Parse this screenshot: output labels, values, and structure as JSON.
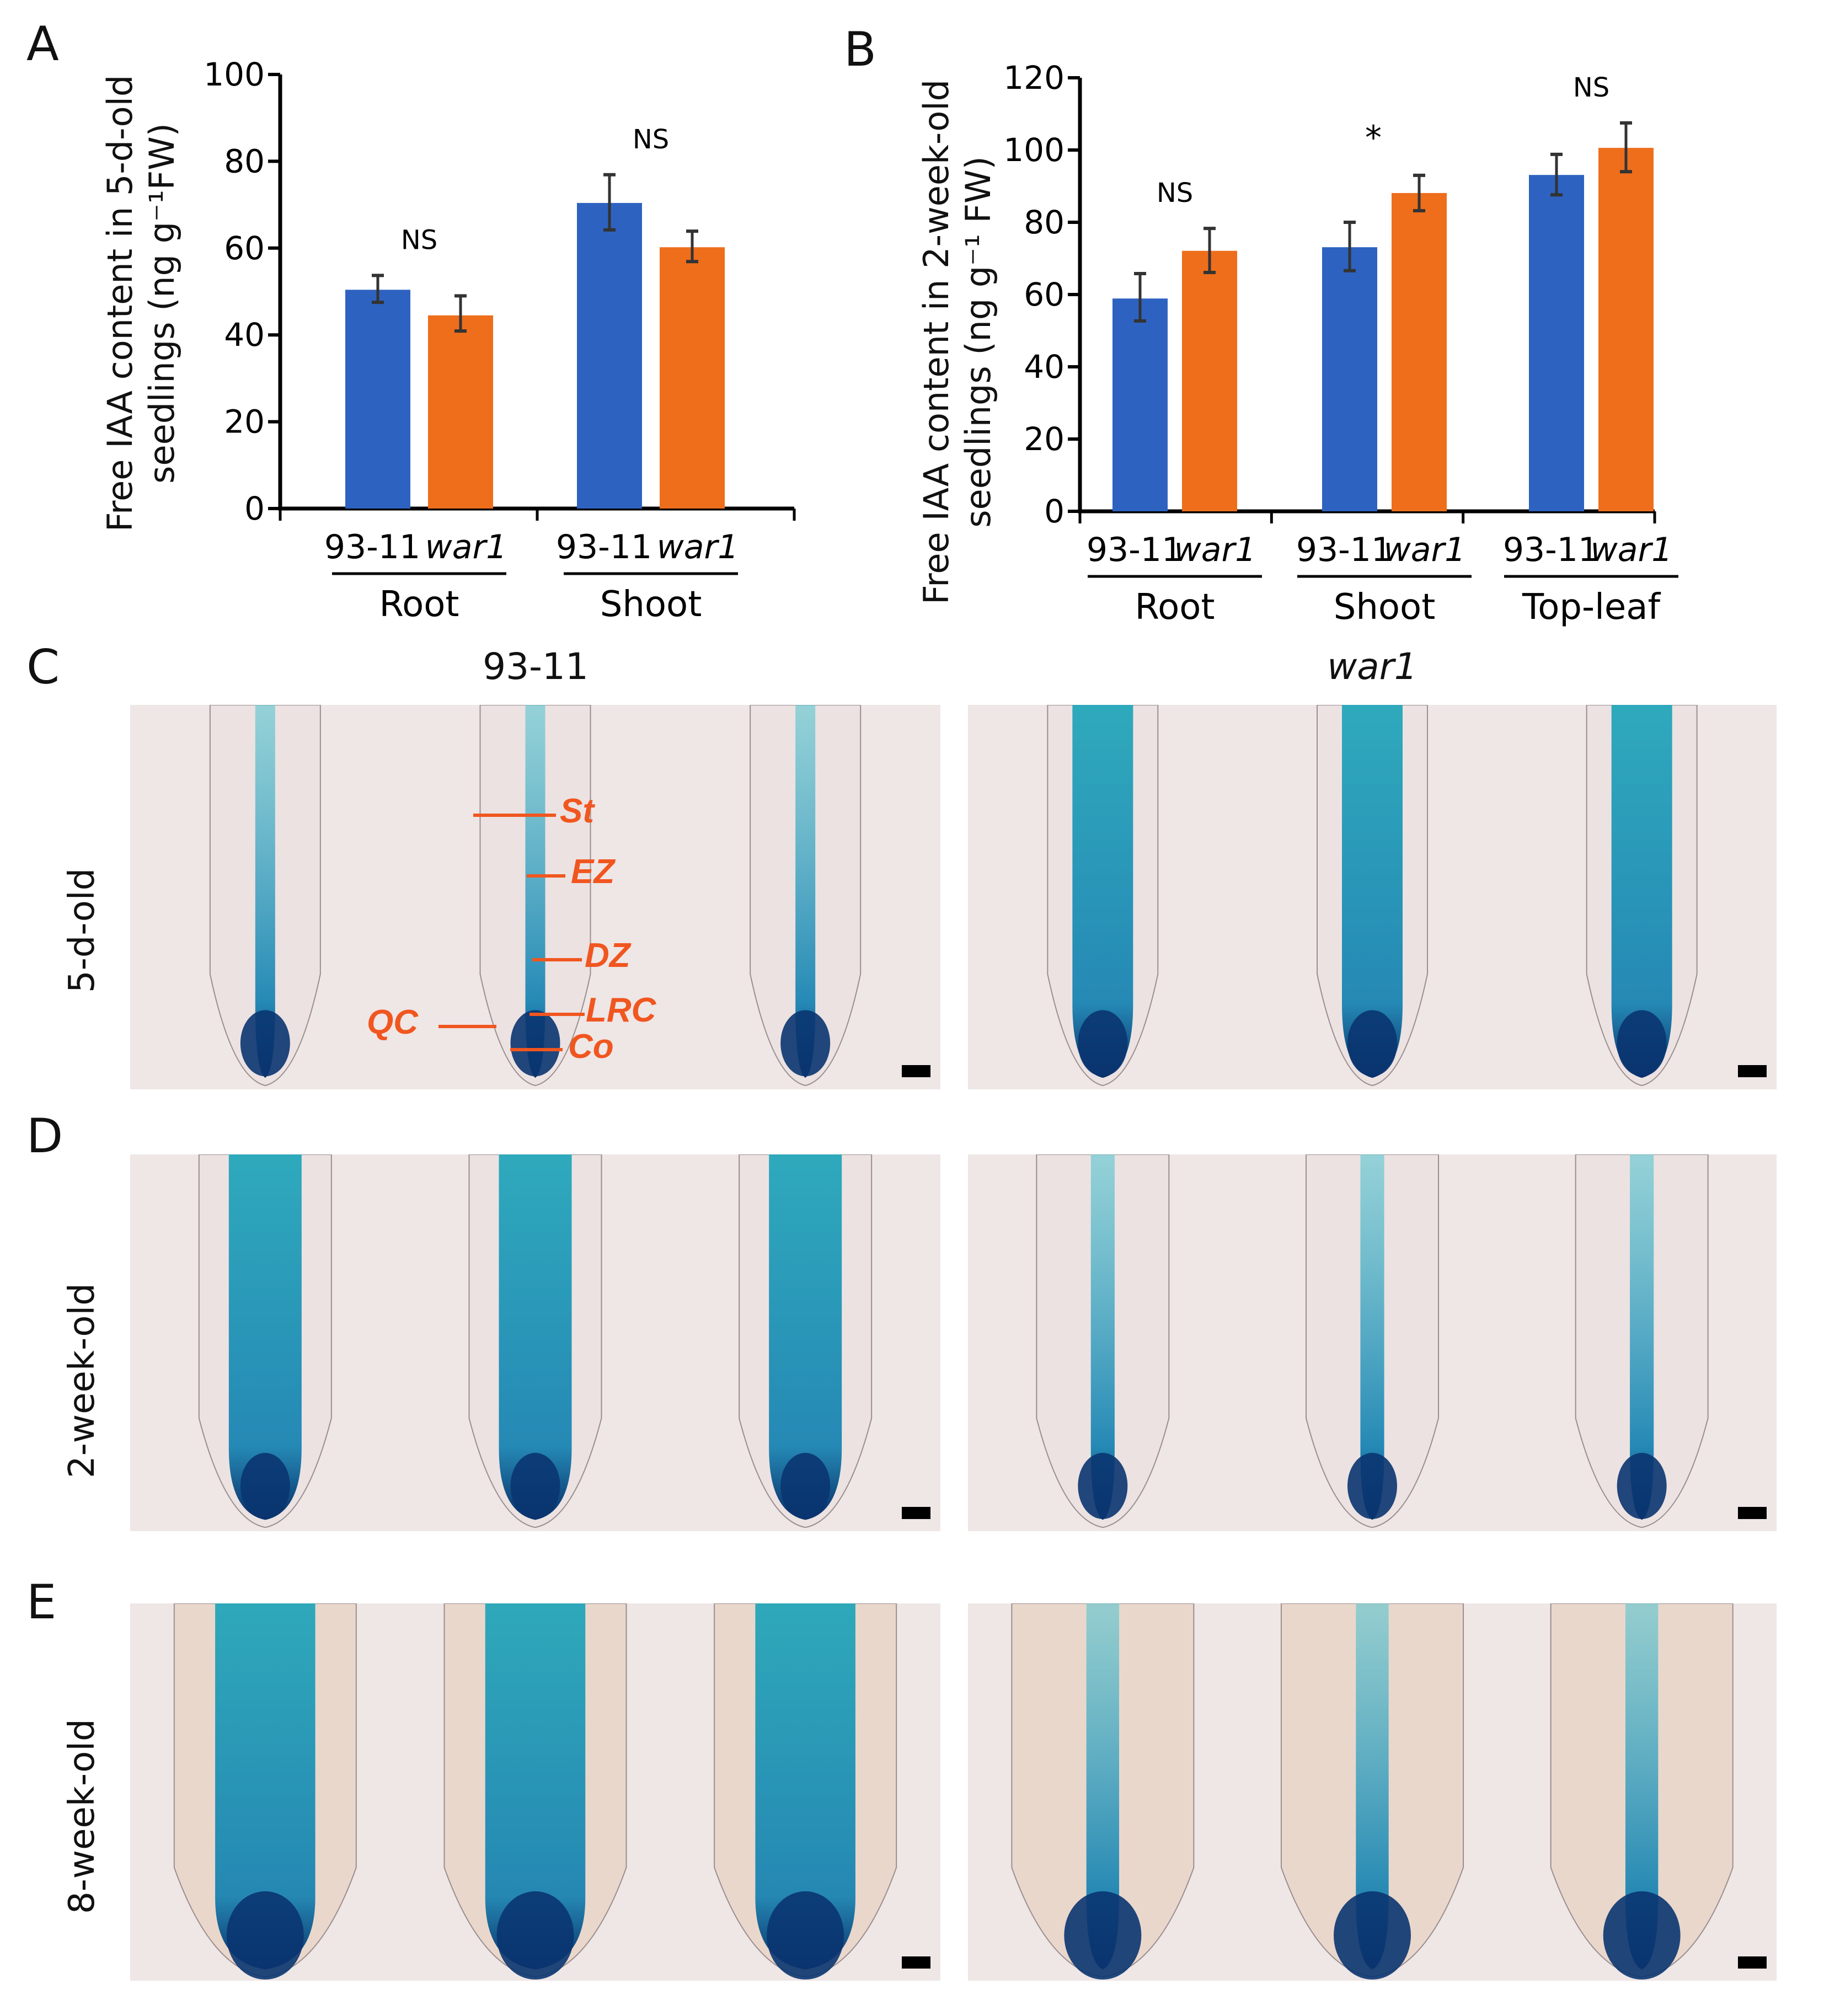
{
  "panels": {
    "A": "A",
    "B": "B",
    "C": "C",
    "D": "D",
    "E": "E"
  },
  "colors": {
    "wildtype": "#2e62c0",
    "mutant": "#ee6e1c",
    "annotation": "#f0561f",
    "errorbar": "#333333"
  },
  "chart_data": [
    {
      "id": "A",
      "type": "bar",
      "title": "",
      "ylabel_line1": "Free IAA content in 5-d-old",
      "ylabel_line2": "seedlings (ng g⁻¹FW)",
      "xlabel": "",
      "ylim": [
        0,
        100
      ],
      "yticks": [
        0,
        20,
        40,
        60,
        80,
        100
      ],
      "grid": false,
      "groups": [
        "Root",
        "Shoot"
      ],
      "bar_labels": [
        "93-11",
        "war1"
      ],
      "series": [
        {
          "name": "93-11",
          "values": [
            50.4,
            70.4
          ],
          "err_low": [
            47.5,
            64.2
          ],
          "err_high": [
            53.7,
            76.9
          ]
        },
        {
          "name": "war1",
          "values": [
            44.5,
            60.2
          ],
          "err_low": [
            40.9,
            56.9
          ],
          "err_high": [
            49.0,
            63.9
          ]
        }
      ],
      "significance": [
        "NS",
        "NS"
      ]
    },
    {
      "id": "B",
      "type": "bar",
      "title": "",
      "ylabel_line1": "Free IAA content in 2-week-old",
      "ylabel_line2": "seedlings (ng g⁻¹ FW)",
      "xlabel": "",
      "ylim": [
        0,
        120
      ],
      "yticks": [
        0,
        20,
        40,
        60,
        80,
        100,
        120
      ],
      "grid": false,
      "groups": [
        "Root",
        "Shoot",
        "Top-leaf"
      ],
      "bar_labels": [
        "93-11",
        "war1"
      ],
      "series": [
        {
          "name": "93-11",
          "values": [
            58.9,
            73.1,
            93.1
          ],
          "err_low": [
            52.7,
            66.6,
            87.6
          ],
          "err_high": [
            65.8,
            80.0,
            98.8
          ]
        },
        {
          "name": "war1",
          "values": [
            72.1,
            88.1,
            100.6
          ],
          "err_low": [
            66.1,
            83.2,
            94.0
          ],
          "err_high": [
            78.3,
            93.0,
            107.5
          ]
        }
      ],
      "significance": [
        "NS",
        "*",
        "NS"
      ]
    }
  ],
  "micrographs": {
    "column_titles": [
      "93-11",
      "war1"
    ],
    "rows": [
      {
        "panel": "C",
        "label": "5-d-old"
      },
      {
        "panel": "D",
        "label": "2-week-old"
      },
      {
        "panel": "E",
        "label": "8-week-old"
      }
    ],
    "annotations": [
      "St",
      "EZ",
      "DZ",
      "LRC",
      "QC",
      "Co"
    ]
  }
}
